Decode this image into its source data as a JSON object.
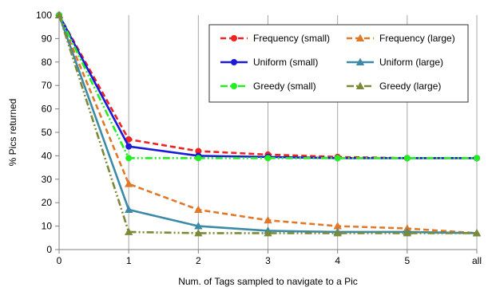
{
  "chart_data": {
    "type": "line",
    "title": "",
    "xlabel": "Num. of Tags sampled to navigate to a Pic",
    "ylabel": "% Pics  returned",
    "categories": [
      "0",
      "1",
      "2",
      "3",
      "4",
      "5",
      "all"
    ],
    "ylim": [
      0,
      100
    ],
    "yticks": [
      0,
      10,
      20,
      30,
      40,
      50,
      60,
      70,
      80,
      90,
      100
    ],
    "grid": "vertical",
    "legend_position": "top-right",
    "series": [
      {
        "name": "Frequency (small)",
        "values": [
          100,
          47,
          42,
          40.5,
          39.5,
          39,
          39
        ],
        "color": "#ee2222",
        "marker": "circle",
        "dash": "dashed"
      },
      {
        "name": "Frequency (large)",
        "values": [
          100,
          28,
          17,
          12.5,
          10,
          9,
          7
        ],
        "color": "#e07828",
        "marker": "triangle",
        "dash": "dashed"
      },
      {
        "name": "Uniform (small)",
        "values": [
          100,
          44,
          40,
          39.5,
          39,
          39,
          39
        ],
        "color": "#1a1ad8",
        "marker": "circle",
        "dash": "solid"
      },
      {
        "name": "Uniform (large)",
        "values": [
          100,
          17,
          10,
          8,
          7.5,
          7.5,
          7
        ],
        "color": "#3a8aa8",
        "marker": "triangle",
        "dash": "solid"
      },
      {
        "name": "Greedy (small)",
        "values": [
          100,
          39,
          39,
          39,
          39,
          39,
          39
        ],
        "color": "#22ee22",
        "marker": "circle",
        "dash": "dashdotdot"
      },
      {
        "name": "Greedy (large)",
        "values": [
          100,
          7.5,
          7,
          7,
          7,
          7,
          7
        ],
        "color": "#7a8a38",
        "marker": "triangle",
        "dash": "dashdotdot"
      }
    ]
  }
}
